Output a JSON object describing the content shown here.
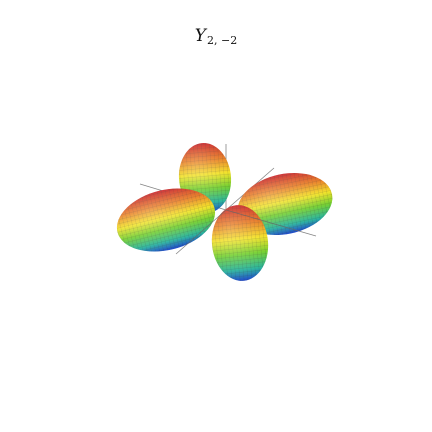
{
  "title": {
    "base": "Y",
    "subscript": "2, −2"
  },
  "colors": {
    "gradient": [
      "#d62020",
      "#e8731a",
      "#f0e020",
      "#7ed321",
      "#2bb3a0",
      "#1b4fd6"
    ],
    "mesh": "#333333",
    "axis": "#555555"
  }
}
